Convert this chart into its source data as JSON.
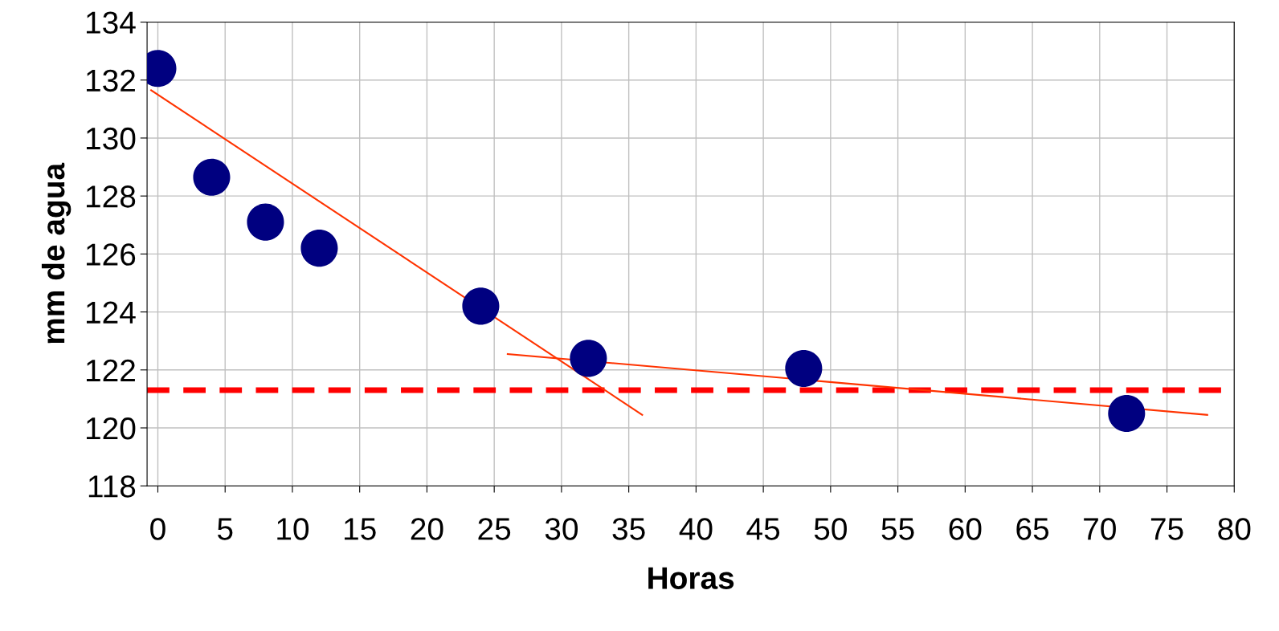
{
  "chart_data": {
    "type": "scatter",
    "xlabel": "Horas",
    "ylabel": "mm de agua",
    "series": [
      {
        "color": "#000080",
        "marker": "circle",
        "x": [
          0,
          4,
          8,
          12,
          24,
          32,
          48,
          72
        ],
        "values": [
          132.4,
          128.65,
          127.1,
          126.2,
          124.2,
          122.4,
          122.05,
          120.5
        ]
      },
      {
        "type": "line",
        "color": "#ff3300",
        "marker": "none",
        "line_style": "solid",
        "x": [
          -0.5,
          36
        ],
        "values": [
          131.65,
          120.45
        ]
      },
      {
        "type": "line",
        "color": "#ff3300",
        "marker": "none",
        "line_style": "solid",
        "x": [
          26,
          78
        ],
        "values": [
          122.55,
          120.45
        ]
      }
    ],
    "ref_lines": [
      {
        "axis": "y",
        "value": 121.3,
        "color": "#ff0000",
        "line_style": "dashed"
      }
    ],
    "xlim": [
      -0.8,
      80
    ],
    "xticks": [
      0,
      5,
      10,
      15,
      20,
      25,
      30,
      35,
      40,
      45,
      50,
      55,
      60,
      65,
      70,
      75,
      80
    ],
    "ylim": [
      118,
      134
    ],
    "yticks": [
      118,
      120,
      122,
      124,
      126,
      128,
      130,
      132,
      134
    ],
    "grid": true,
    "legend": false
  }
}
